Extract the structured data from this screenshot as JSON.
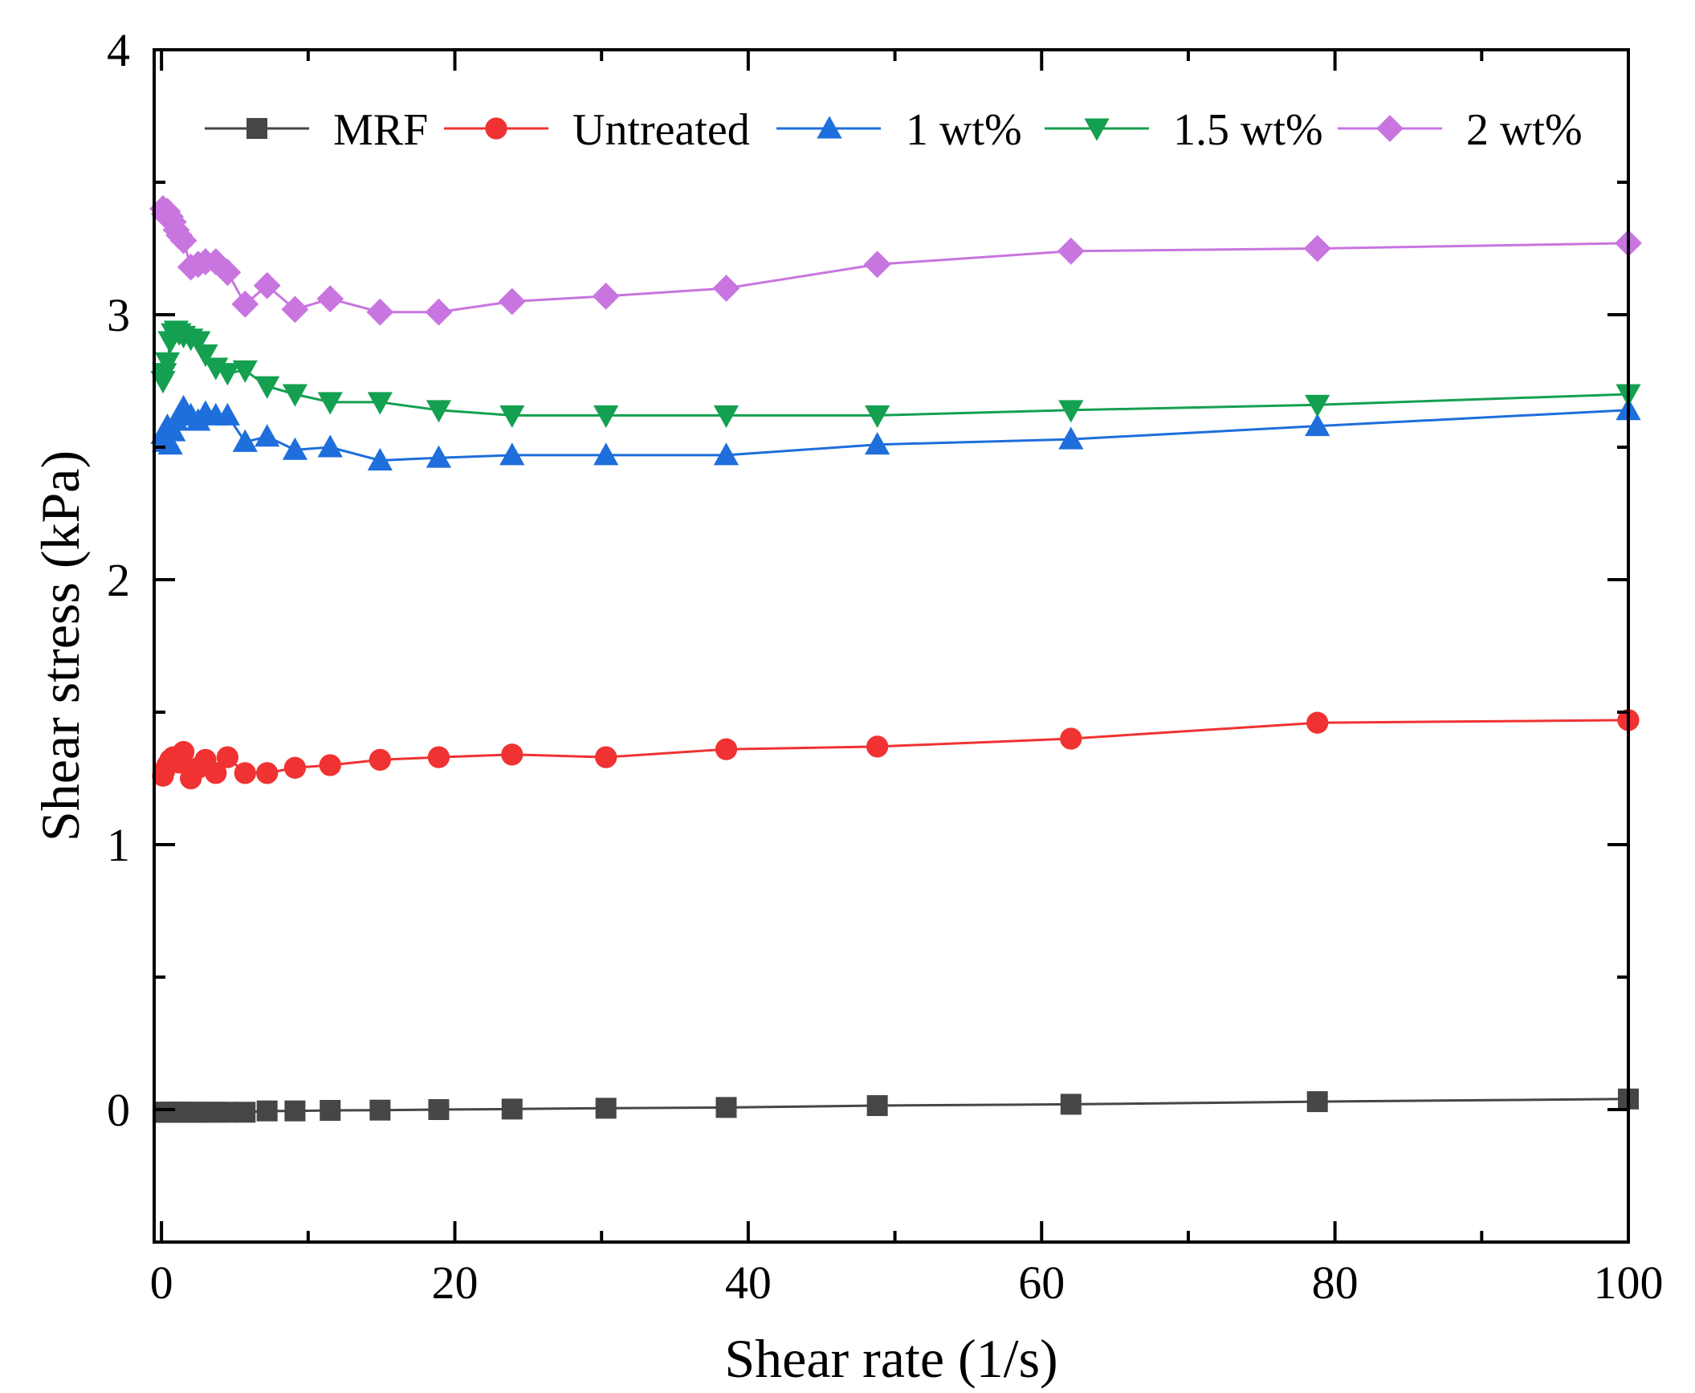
{
  "chart_data": {
    "type": "line",
    "title": "",
    "xlabel": "Shear rate (1/s)",
    "ylabel": "Shear stress (kPa)",
    "xlim": [
      -0.5,
      100
    ],
    "ylim": [
      -0.5,
      4
    ],
    "x_ticks": [
      0,
      20,
      40,
      60,
      80,
      100
    ],
    "x_tick_labels": [
      "0",
      "20",
      "40",
      "60",
      "80",
      "100"
    ],
    "x_minor_ticks": [
      10,
      30,
      50,
      70,
      90
    ],
    "y_ticks": [
      0,
      1,
      2,
      3,
      4
    ],
    "y_tick_labels": [
      "0",
      "1",
      "2",
      "3",
      "4"
    ],
    "y_minor_ticks": [
      -0.5,
      0.5,
      1.5,
      2.5,
      3.5
    ],
    "grid": false,
    "legend_position": "top",
    "x": [
      0.1,
      0.2,
      0.4,
      0.6,
      0.8,
      1.0,
      1.2,
      1.5,
      2.0,
      2.5,
      3.0,
      3.7,
      4.5,
      5.7,
      7.2,
      9.1,
      11.5,
      14.9,
      18.9,
      23.9,
      30.3,
      38.5,
      48.8,
      62.0,
      78.8,
      100
    ],
    "series": [
      {
        "name": "MRF",
        "color": "#464646",
        "marker": "square",
        "values": [
          -0.01,
          -0.01,
          -0.01,
          -0.01,
          -0.01,
          -0.01,
          -0.01,
          -0.01,
          -0.01,
          -0.01,
          -0.01,
          -0.01,
          -0.01,
          -0.01,
          -0.005,
          -0.005,
          -0.003,
          -0.002,
          0.0,
          0.002,
          0.005,
          0.008,
          0.015,
          0.02,
          0.03,
          0.04
        ]
      },
      {
        "name": "Untreated",
        "color": "#f03232",
        "marker": "circle",
        "values": [
          1.26,
          1.28,
          1.3,
          1.32,
          1.33,
          1.32,
          1.31,
          1.35,
          1.25,
          1.29,
          1.32,
          1.27,
          1.33,
          1.27,
          1.27,
          1.29,
          1.3,
          1.32,
          1.33,
          1.34,
          1.33,
          1.36,
          1.37,
          1.4,
          1.46,
          1.47
        ]
      },
      {
        "name": "1 wt%",
        "color": "#1e6edc",
        "marker": "triangle-up",
        "values": [
          2.55,
          2.52,
          2.58,
          2.51,
          2.56,
          2.6,
          2.62,
          2.65,
          2.62,
          2.6,
          2.63,
          2.62,
          2.62,
          2.52,
          2.54,
          2.49,
          2.5,
          2.45,
          2.46,
          2.47,
          2.47,
          2.47,
          2.51,
          2.53,
          2.58,
          2.64
        ]
      },
      {
        "name": "1.5 wt%",
        "color": "#14a050",
        "marker": "triangle-down",
        "values": [
          2.75,
          2.78,
          2.82,
          2.9,
          2.93,
          2.94,
          2.93,
          2.92,
          2.91,
          2.9,
          2.85,
          2.8,
          2.78,
          2.79,
          2.73,
          2.7,
          2.67,
          2.67,
          2.64,
          2.62,
          2.62,
          2.62,
          2.62,
          2.64,
          2.66,
          2.7
        ]
      },
      {
        "name": "2 wt%",
        "color": "#c875e0",
        "marker": "diamond",
        "values": [
          3.4,
          3.38,
          3.39,
          3.37,
          3.35,
          3.32,
          3.3,
          3.28,
          3.18,
          3.19,
          3.2,
          3.2,
          3.16,
          3.04,
          3.11,
          3.02,
          3.06,
          3.01,
          3.01,
          3.05,
          3.07,
          3.1,
          3.19,
          3.24,
          3.25,
          3.27
        ]
      }
    ]
  }
}
